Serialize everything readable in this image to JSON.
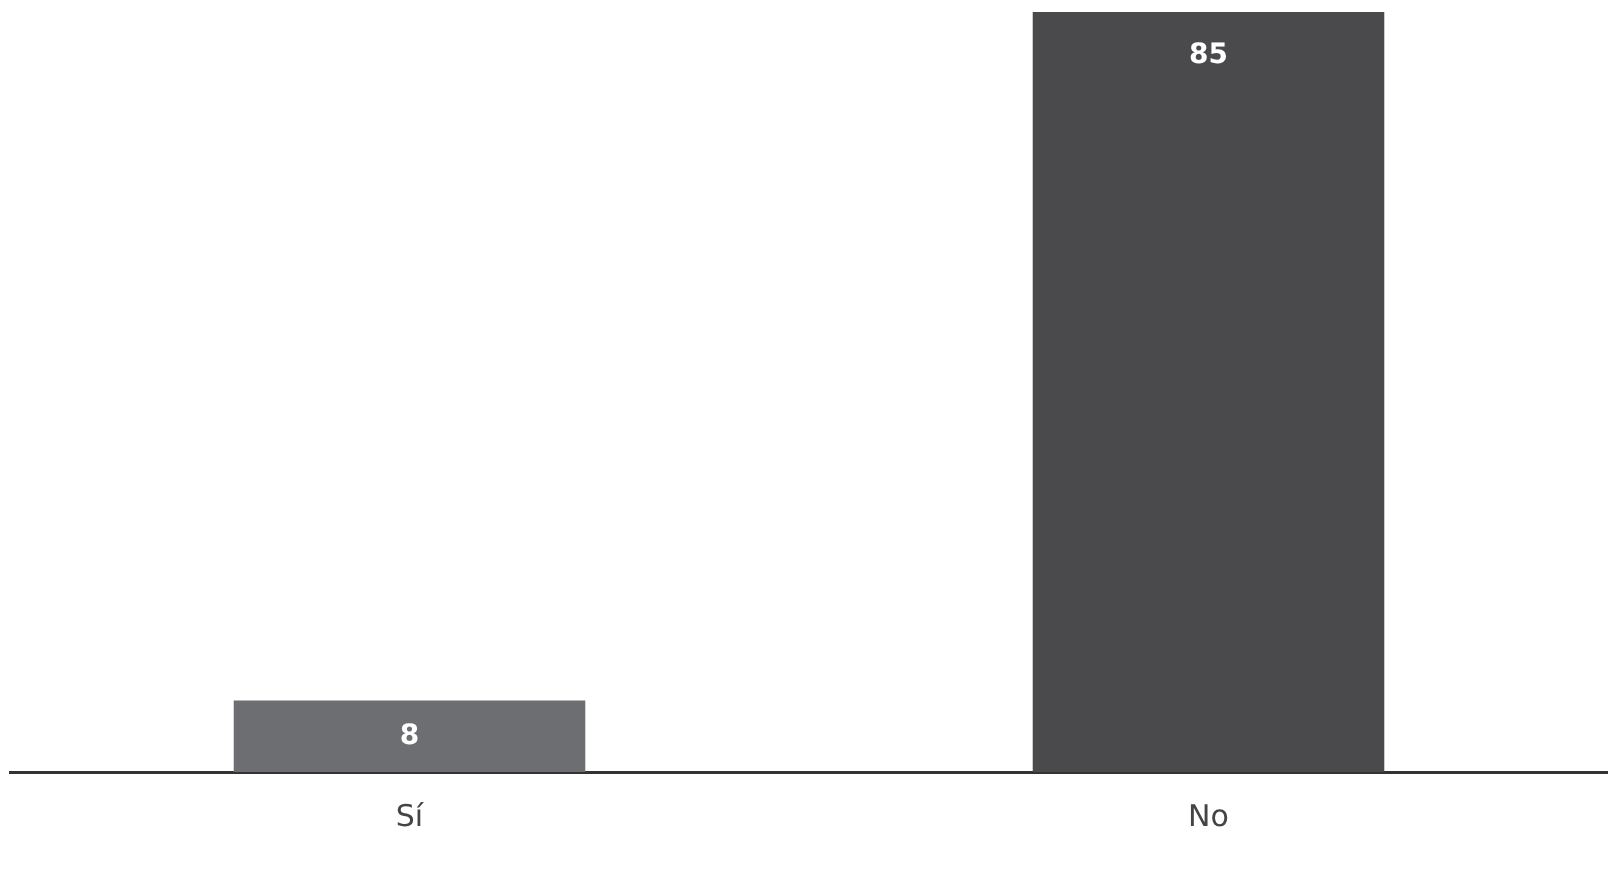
{
  "chart_data": {
    "type": "bar",
    "categories": [
      "Sí",
      "No"
    ],
    "values": [
      8,
      85
    ],
    "colors": [
      "#6d6e71",
      "#4a4a4c"
    ],
    "data_labels": true,
    "tick_labels": "x",
    "grid": false,
    "legend": false
  }
}
